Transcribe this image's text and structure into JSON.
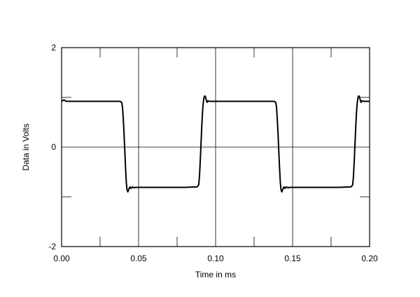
{
  "chart_data": {
    "type": "line",
    "title": "",
    "xlabel": "Time in ms",
    "ylabel": "Data in Volts",
    "xlim": [
      0.0,
      0.2
    ],
    "ylim": [
      -2,
      2
    ],
    "grid": true,
    "x_ticks": [
      "0.00",
      "0.05",
      "0.10",
      "0.15",
      "0.20"
    ],
    "x_tick_values": [
      0.0,
      0.05,
      0.1,
      0.15,
      0.2
    ],
    "y_ticks": [
      "2",
      "0",
      "-2"
    ],
    "y_tick_values": [
      2,
      0,
      -2
    ],
    "line_color": "#000000",
    "series": [
      {
        "x": [
          0.0,
          0.0015,
          0.003,
          0.01,
          0.02,
          0.03,
          0.038,
          0.039,
          0.0395,
          0.04,
          0.0405,
          0.041,
          0.0415,
          0.042,
          0.0425,
          0.043,
          0.0435,
          0.044,
          0.0445,
          0.045,
          0.046,
          0.047,
          0.048,
          0.05,
          0.06,
          0.07,
          0.08,
          0.088,
          0.089,
          0.0895,
          0.09,
          0.0905,
          0.091,
          0.0915,
          0.092,
          0.0925,
          0.093,
          0.0935,
          0.094,
          0.0945,
          0.095,
          0.096,
          0.097,
          0.098,
          0.1,
          0.11,
          0.12,
          0.13,
          0.138,
          0.139,
          0.1395,
          0.14,
          0.1405,
          0.141,
          0.1415,
          0.142,
          0.1425,
          0.143,
          0.1435,
          0.144,
          0.1445,
          0.145,
          0.146,
          0.147,
          0.148,
          0.15,
          0.16,
          0.17,
          0.18,
          0.188,
          0.189,
          0.1895,
          0.19,
          0.1905,
          0.191,
          0.1915,
          0.192,
          0.1925,
          0.193,
          0.1935,
          0.194,
          0.1945,
          0.195,
          0.196,
          0.197,
          0.198,
          0.2
        ],
        "y": [
          0.92,
          0.95,
          0.92,
          0.92,
          0.92,
          0.92,
          0.92,
          0.9,
          0.82,
          0.6,
          0.3,
          -0.05,
          -0.4,
          -0.7,
          -0.86,
          -0.9,
          -0.86,
          -0.82,
          -0.8,
          -0.83,
          -0.8,
          -0.82,
          -0.81,
          -0.81,
          -0.81,
          -0.81,
          -0.81,
          -0.8,
          -0.76,
          -0.6,
          -0.3,
          0.05,
          0.4,
          0.7,
          0.9,
          1.0,
          1.03,
          1.0,
          0.94,
          0.9,
          0.93,
          0.92,
          0.92,
          0.92,
          0.92,
          0.92,
          0.92,
          0.92,
          0.92,
          0.9,
          0.82,
          0.6,
          0.3,
          -0.05,
          -0.4,
          -0.7,
          -0.86,
          -0.9,
          -0.86,
          -0.82,
          -0.8,
          -0.83,
          -0.8,
          -0.82,
          -0.81,
          -0.81,
          -0.81,
          -0.81,
          -0.81,
          -0.8,
          -0.76,
          -0.6,
          -0.3,
          0.05,
          0.4,
          0.7,
          0.9,
          1.0,
          1.03,
          1.0,
          0.94,
          0.9,
          0.93,
          0.92,
          0.92,
          0.92,
          0.92
        ]
      }
    ]
  }
}
